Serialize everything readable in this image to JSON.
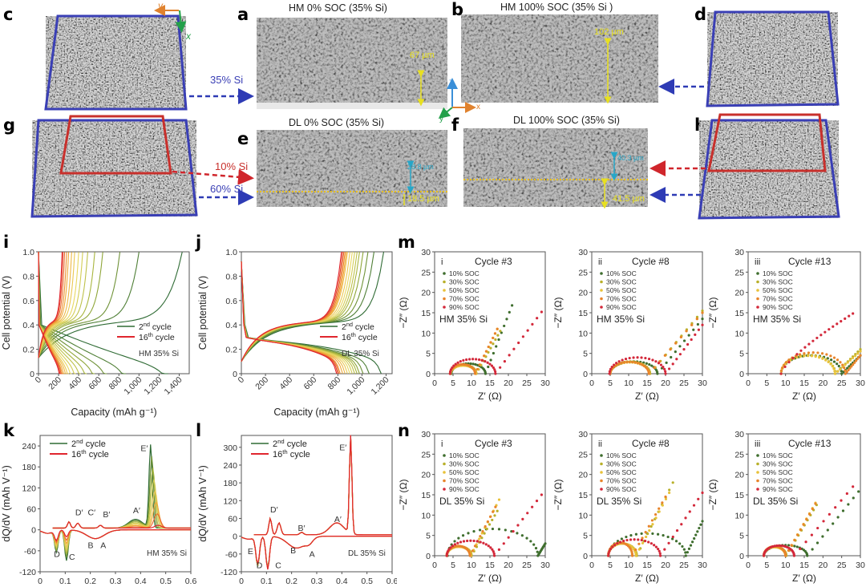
{
  "figure": {
    "panel_labels": {
      "a": "a",
      "b": "b",
      "c": "c",
      "d": "d",
      "e": "e",
      "f": "f",
      "g": "g",
      "h": "h",
      "i": "i",
      "j": "j",
      "k": "k",
      "l": "l",
      "m": "m",
      "n": "n"
    },
    "images": {
      "a": {
        "title": "HM 0% SOC (35% Si)",
        "thickness": "67 µm"
      },
      "b": {
        "title": "HM 100% SOC (35% Si )",
        "thickness": "102 µm"
      },
      "e": {
        "title": "DL 0% SOC (35% Si)",
        "top_thickness": "28.8 µm",
        "bottom_thickness": "18.5 µm"
      },
      "f": {
        "title": "DL 100% SOC (35% Si)",
        "top_thickness": "40.3 µm",
        "bottom_thickness": "41.5 µm"
      },
      "c": {
        "label": "35% Si",
        "axis_y": "y",
        "axis_x": "x"
      },
      "g": {
        "label_top": "10% Si",
        "label_bottom": "60% Si"
      },
      "axes_triad": {
        "z": "z",
        "x": "x",
        "y": "y"
      }
    },
    "colors": {
      "blue_frame": "#3a3fb5",
      "red_frame": "#c8302c",
      "yellow": "#e8e020",
      "cyan": "#27a6c8",
      "cycle2": "#2f6b34",
      "cycle16": "#e0262e"
    }
  },
  "chart_data": [
    {
      "id": "i",
      "type": "line",
      "xlabel": "Capacity (mAh g⁻¹)",
      "ylabel": "Cell potential (V)",
      "xlim": [
        0,
        1500
      ],
      "ylim": [
        0,
        1.0
      ],
      "xticks": [
        "0",
        "200",
        "400",
        "600",
        "800",
        "1,000",
        "1,200",
        "1,400"
      ],
      "yticks": [
        "0",
        "0.2",
        "0.4",
        "0.6",
        "0.8",
        "1.0"
      ],
      "legend": [
        {
          "name": "2nd cycle",
          "sup": "nd",
          "base": "2",
          "rest": " cycle"
        },
        {
          "name": "16th cycle",
          "sup": "th",
          "base": "16",
          "rest": " cycle"
        }
      ],
      "annotation": "HM 35% Si",
      "discharge_end_capacity": [
        1290,
        870,
        680,
        560,
        480,
        420,
        370,
        330,
        300,
        280,
        260,
        245,
        235,
        225,
        215
      ],
      "charge_end_capacity": [
        1430,
        1000,
        810,
        640,
        560,
        490,
        440,
        400,
        360,
        330,
        300,
        280,
        260,
        245,
        235
      ]
    },
    {
      "id": "j",
      "type": "line",
      "xlabel": "Capacity (mAh g⁻¹)",
      "ylabel": "Cell potential (V)",
      "xlim": [
        0,
        1250
      ],
      "ylim": [
        0,
        1.0
      ],
      "xticks": [
        "0",
        "200",
        "400",
        "600",
        "800",
        "1,000",
        "1,200"
      ],
      "yticks": [
        "0",
        "0.2",
        "0.4",
        "0.6",
        "0.8",
        "1.0"
      ],
      "legend": [
        {
          "name": "2nd cycle",
          "sup": "nd",
          "base": "2",
          "rest": " cycle"
        },
        {
          "name": "16th cycle",
          "sup": "th",
          "base": "16",
          "rest": " cycle"
        }
      ],
      "annotation": "DL 35% Si",
      "discharge_end_capacity": [
        1160,
        1060,
        1010,
        980,
        960,
        940,
        920,
        900,
        880,
        860,
        840,
        820,
        810,
        800,
        790
      ],
      "charge_end_capacity": [
        1180,
        1100,
        1050,
        1010,
        980,
        960,
        940,
        920,
        900,
        880,
        870,
        860,
        850,
        840,
        830
      ]
    },
    {
      "id": "k",
      "type": "line",
      "xlabel": "Cell potential (V)",
      "ylabel": "dQ/dV (mAh V⁻¹)",
      "xlim": [
        0,
        0.6
      ],
      "ylim": [
        -120,
        270
      ],
      "xticks": [
        "0",
        "0.1",
        "0.2",
        "0.3",
        "0.4",
        "0.5",
        "0.6"
      ],
      "yticks": [
        "-120",
        "-60",
        "0",
        "60",
        "120",
        "180",
        "240"
      ],
      "legend": [
        {
          "name": "2nd cycle",
          "sup": "nd",
          "base": "2",
          "rest": " cycle"
        },
        {
          "name": "16th cycle",
          "sup": "th",
          "base": "16",
          "rest": " cycle"
        }
      ],
      "annotation": "HM 35% Si",
      "peak_labels": [
        {
          "t": "E′",
          "x": 0.4,
          "y": 225
        },
        {
          "t": "A′",
          "x": 0.37,
          "y": 48
        },
        {
          "t": "D′",
          "x": 0.14,
          "y": 42
        },
        {
          "t": "C′",
          "x": 0.19,
          "y": 42
        },
        {
          "t": "B′",
          "x": 0.25,
          "y": 36
        },
        {
          "t": "B",
          "x": 0.19,
          "y": -52
        },
        {
          "t": "A",
          "x": 0.24,
          "y": -52
        },
        {
          "t": "D",
          "x": 0.055,
          "y": -78
        },
        {
          "t": "C",
          "x": 0.115,
          "y": -86
        }
      ],
      "series": [
        {
          "name": "2nd cycle",
          "E_peak": 237,
          "C_min": -88,
          "D_min": -62
        },
        {
          "name": "16th cycle",
          "E_peak": 8,
          "C_min": -20,
          "D_min": -28
        }
      ]
    },
    {
      "id": "l",
      "type": "line",
      "xlabel": "Cell potential (V)",
      "ylabel": "dQ/dV (mAh V⁻¹)",
      "xlim": [
        0,
        0.6
      ],
      "ylim": [
        -120,
        340
      ],
      "xticks": [
        "0",
        "0.1",
        "0.2",
        "0.3",
        "0.4",
        "0.5",
        "0.6"
      ],
      "yticks": [
        "-120",
        "-60",
        "0",
        "60",
        "120",
        "180",
        "240",
        "300"
      ],
      "legend": [
        {
          "name": "2nd cycle",
          "sup": "nd",
          "base": "2",
          "rest": " cycle"
        },
        {
          "name": "16th cycle",
          "sup": "th",
          "base": "16",
          "rest": " cycle"
        }
      ],
      "annotation": "DL 35% Si",
      "peak_labels": [
        {
          "t": "E′",
          "x": 0.39,
          "y": 290
        },
        {
          "t": "A′",
          "x": 0.37,
          "y": 48
        },
        {
          "t": "D′",
          "x": 0.115,
          "y": 80
        },
        {
          "t": "B′",
          "x": 0.225,
          "y": 18
        },
        {
          "t": "E",
          "x": 0.025,
          "y": -60
        },
        {
          "t": "B",
          "x": 0.195,
          "y": -58
        },
        {
          "t": "A",
          "x": 0.27,
          "y": -70
        },
        {
          "t": "D",
          "x": 0.06,
          "y": -108
        },
        {
          "t": "C",
          "x": 0.135,
          "y": -108
        }
      ],
      "series": [
        {
          "name": "2nd cycle",
          "E_peak": 325,
          "D_min": -100,
          "C_min": -105
        },
        {
          "name": "16th cycle",
          "E_peak": 330,
          "D_min": -92,
          "C_min": -112
        }
      ]
    },
    {
      "id": "m-i",
      "type": "scatter",
      "roman": "i",
      "title": "Cycle #3",
      "annotation": "HM 35% Si",
      "xlabel": "Z′ (Ω)",
      "ylabel": "−Z″ (Ω)",
      "xlim": [
        0,
        30
      ],
      "ylim": [
        0,
        30
      ],
      "xticks": [
        "0",
        "5",
        "10",
        "15",
        "20",
        "25",
        "30"
      ],
      "yticks": [
        "0",
        "5",
        "10",
        "15",
        "20",
        "25",
        "30"
      ],
      "legend": [
        "10% SOC",
        "30% SOC",
        "50% SOC",
        "70% SOC",
        "90% SOC"
      ],
      "series": [
        {
          "name": "10% SOC",
          "start": 4.5,
          "dip": 13.8,
          "arc_h": 2.5,
          "tail_end": [
            21,
            16.8
          ]
        },
        {
          "name": "30% SOC",
          "start": 4.3,
          "dip": 11.3,
          "arc_h": 2.2,
          "tail_end": [
            17.8,
            10.5
          ]
        },
        {
          "name": "50% SOC",
          "start": 4.3,
          "dip": 11.2,
          "arc_h": 2.0,
          "tail_end": [
            17,
            11
          ]
        },
        {
          "name": "70% SOC",
          "start": 4.2,
          "dip": 11.0,
          "arc_h": 2.3,
          "tail_end": [
            17,
            11
          ]
        },
        {
          "name": "90% SOC",
          "start": 4.2,
          "dip": 16.5,
          "arc_h": 3.6,
          "tail_end": [
            29,
            15.2
          ]
        }
      ]
    },
    {
      "id": "m-ii",
      "type": "scatter",
      "roman": "ii",
      "title": "Cycle #8",
      "annotation": "HM 35% Si",
      "xlabel": "Z′ (Ω)",
      "ylabel": "−Z″ (Ω)",
      "xlim": [
        0,
        30
      ],
      "ylim": [
        0,
        30
      ],
      "xticks": [
        "0",
        "5",
        "10",
        "15",
        "20",
        "25",
        "30"
      ],
      "yticks": [
        "0",
        "5",
        "10",
        "15",
        "20",
        "25",
        "30"
      ],
      "legend": [
        "10% SOC",
        "30% SOC",
        "50% SOC",
        "70% SOC",
        "90% SOC"
      ],
      "series": [
        {
          "name": "10% SOC",
          "start": 5,
          "dip": 17.8,
          "arc_h": 3.0,
          "tail_end": [
            30,
            13.5
          ]
        },
        {
          "name": "30% SOC",
          "start": 5,
          "dip": 15.8,
          "arc_h": 3.0,
          "tail_end": [
            30,
            15.5
          ]
        },
        {
          "name": "50% SOC",
          "start": 5,
          "dip": 15.6,
          "arc_h": 2.8,
          "tail_end": [
            30,
            15
          ]
        },
        {
          "name": "70% SOC",
          "start": 5,
          "dip": 15.5,
          "arc_h": 2.9,
          "tail_end": [
            30,
            15
          ]
        },
        {
          "name": "90% SOC",
          "start": 4.8,
          "dip": 20.0,
          "arc_h": 4.0,
          "tail_end": [
            30,
            12
          ]
        }
      ]
    },
    {
      "id": "m-iii",
      "type": "scatter",
      "roman": "iii",
      "title": "Cycle #13",
      "annotation": "HM 35% Si",
      "xlabel": "Z′ (Ω)",
      "ylabel": "−Z″ (Ω)",
      "xlim": [
        0,
        30
      ],
      "ylim": [
        0,
        30
      ],
      "xticks": [
        "0",
        "5",
        "10",
        "15",
        "20",
        "25",
        "30"
      ],
      "yticks": [
        "0",
        "5",
        "10",
        "15",
        "20",
        "25",
        "30"
      ],
      "legend": [
        "10% SOC",
        "30% SOC",
        "50% SOC",
        "70% SOC",
        "90% SOC"
      ],
      "series": [
        {
          "name": "10% SOC",
          "start": 8.8,
          "dip": 25.0,
          "arc_h": 4.5,
          "tail_end": [
            30,
            4.5
          ]
        },
        {
          "name": "30% SOC",
          "start": 8.8,
          "dip": 23.3,
          "arc_h": 4.6,
          "tail_end": [
            30,
            6
          ]
        },
        {
          "name": "50% SOC",
          "start": 8.8,
          "dip": 23.2,
          "arc_h": 4.4,
          "tail_end": [
            30,
            5.5
          ]
        },
        {
          "name": "70% SOC",
          "start": 8.8,
          "dip": 26.0,
          "arc_h": 5.2,
          "tail_end": [
            30,
            4.5
          ]
        },
        {
          "name": "90% SOC",
          "start": 8.8,
          "dip": null,
          "arc_h": null,
          "tail_end": [
            28,
            14.8
          ]
        }
      ]
    },
    {
      "id": "n-i",
      "type": "scatter",
      "roman": "i",
      "title": "Cycle #3",
      "annotation": "DL 35% Si",
      "xlabel": "Z′ (Ω)",
      "ylabel": "−Z″ (Ω)",
      "xlim": [
        0,
        30
      ],
      "ylim": [
        0,
        30
      ],
      "xticks": [
        "0",
        "5",
        "10",
        "15",
        "20",
        "25",
        "30"
      ],
      "yticks": [
        "0",
        "5",
        "10",
        "15",
        "20",
        "25",
        "30"
      ],
      "legend": [
        "10% SOC",
        "30% SOC",
        "50% SOC",
        "70% SOC",
        "90% SOC"
      ],
      "series": [
        {
          "name": "10% SOC",
          "start": 3.5,
          "dip": 28.0,
          "arc_h": 6.6,
          "tail_end": [
            30,
            3
          ]
        },
        {
          "name": "30% SOC",
          "start": 3.3,
          "dip": 10.0,
          "arc_h": 2.3,
          "tail_end": [
            17,
            11
          ]
        },
        {
          "name": "50% SOC",
          "start": 3.3,
          "dip": 9.8,
          "arc_h": 2.2,
          "tail_end": [
            17.5,
            13.8
          ]
        },
        {
          "name": "70% SOC",
          "start": 3.3,
          "dip": 9.6,
          "arc_h": 2.4,
          "tail_end": [
            16.5,
            12
          ]
        },
        {
          "name": "90% SOC",
          "start": 3.3,
          "dip": 16.2,
          "arc_h": 3.7,
          "tail_end": [
            29,
            15
          ]
        }
      ]
    },
    {
      "id": "n-ii",
      "type": "scatter",
      "roman": "ii",
      "title": "Cycle #8",
      "annotation": "DL 35% Si",
      "xlabel": "Z′ (Ω)",
      "ylabel": "−Z″ (Ω)",
      "xlim": [
        0,
        30
      ],
      "ylim": [
        0,
        30
      ],
      "xticks": [
        "0",
        "5",
        "10",
        "15",
        "20",
        "25",
        "30"
      ],
      "yticks": [
        "0",
        "5",
        "10",
        "15",
        "20",
        "25",
        "30"
      ],
      "legend": [
        "10% SOC",
        "30% SOC",
        "50% SOC",
        "70% SOC",
        "90% SOC"
      ],
      "series": [
        {
          "name": "10% SOC",
          "start": 4.5,
          "dip": 25.5,
          "arc_h": 5.5,
          "tail_end": [
            30,
            8.5
          ]
        },
        {
          "name": "30% SOC",
          "start": 4.5,
          "dip": 12.2,
          "arc_h": 3.0,
          "tail_end": [
            22,
            18
          ]
        },
        {
          "name": "50% SOC",
          "start": 4.5,
          "dip": 12.0,
          "arc_h": 3.0,
          "tail_end": [
            21,
            15.5
          ]
        },
        {
          "name": "70% SOC",
          "start": 4.5,
          "dip": 11.0,
          "arc_h": 3.2,
          "tail_end": [
            20,
            14.5
          ]
        },
        {
          "name": "90% SOC",
          "start": 4.5,
          "dip": 18.6,
          "arc_h": 4.0,
          "tail_end": [
            30,
            15.5
          ]
        }
      ]
    },
    {
      "id": "n-iii",
      "type": "scatter",
      "roman": "iii",
      "title": "Cycle #13",
      "annotation": "DL 35% Si",
      "xlabel": "Z′ (Ω)",
      "ylabel": "−Z″ (Ω)",
      "xlim": [
        0,
        30
      ],
      "ylim": [
        0,
        30
      ],
      "xticks": [
        "0",
        "5",
        "10",
        "15",
        "20",
        "25",
        "30"
      ],
      "yticks": [
        "0",
        "5",
        "10",
        "15",
        "20",
        "25",
        "30"
      ],
      "legend": [
        "10% SOC",
        "30% SOC",
        "50% SOC",
        "70% SOC",
        "90% SOC"
      ],
      "series": [
        {
          "name": "10% SOC",
          "start": 4.2,
          "dip": 15.8,
          "arc_h": 2.6,
          "tail_end": [
            29.5,
            15.8
          ]
        },
        {
          "name": "30% SOC",
          "start": 4.2,
          "dip": 10.2,
          "arc_h": 2.2,
          "tail_end": [
            18.3,
            12.5
          ]
        },
        {
          "name": "50% SOC",
          "start": 4.2,
          "dip": 10.0,
          "arc_h": 2.1,
          "tail_end": [
            18,
            13
          ]
        },
        {
          "name": "70% SOC",
          "start": 4.2,
          "dip": 10.0,
          "arc_h": 2.3,
          "tail_end": [
            18,
            12.8
          ]
        },
        {
          "name": "90% SOC",
          "start": 4.2,
          "dip": 12.3,
          "arc_h": 2.5,
          "tail_end": [
            28,
            17
          ]
        }
      ]
    }
  ],
  "soc_colors": [
    "#3f6e2e",
    "#b8b02a",
    "#e8c23a",
    "#e8842a",
    "#d3283a"
  ]
}
